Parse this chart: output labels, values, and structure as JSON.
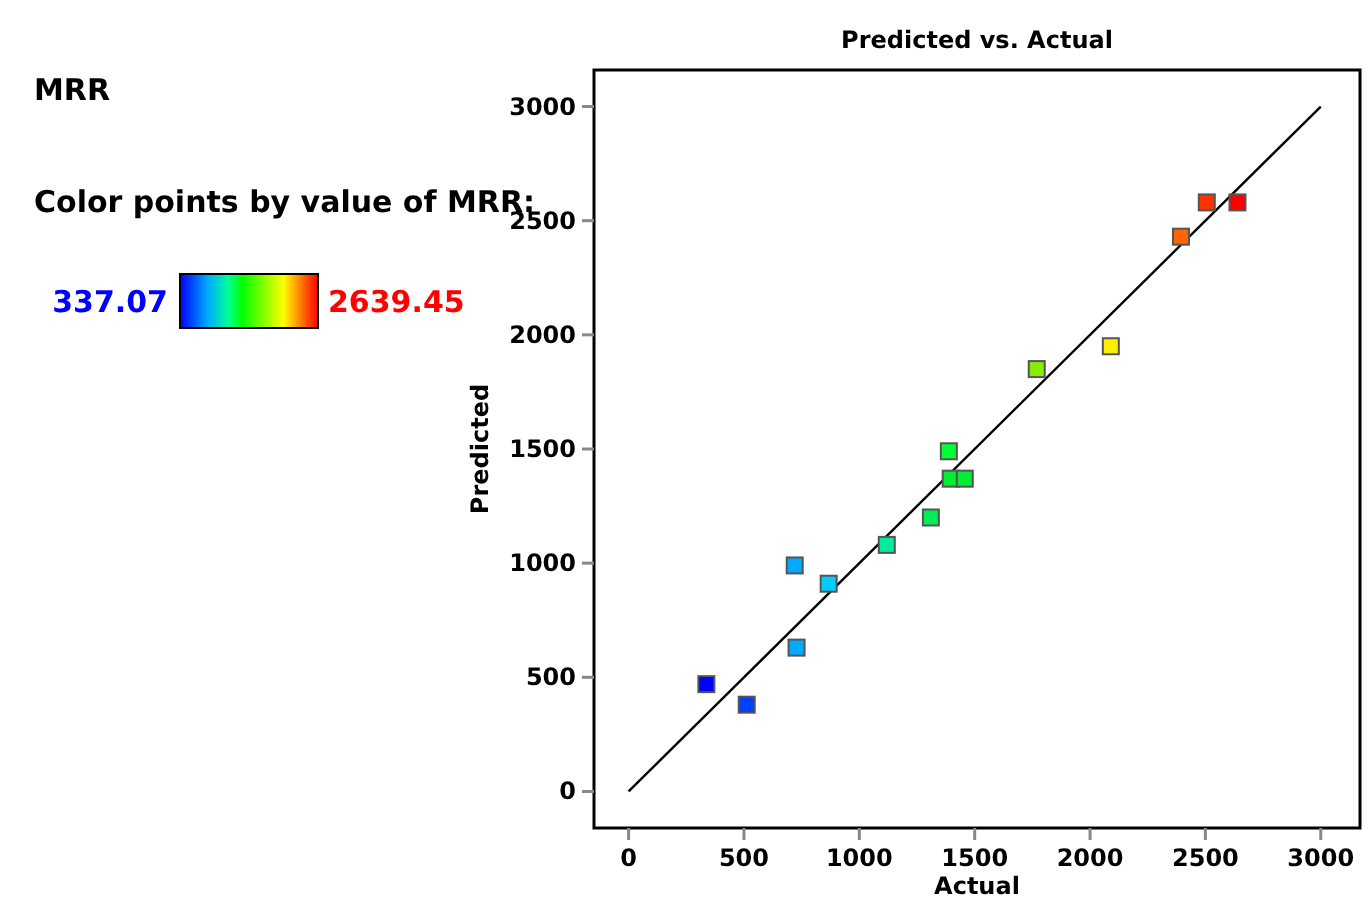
{
  "chart_data": {
    "type": "scatter",
    "title": "Predicted vs. Actual",
    "subtitle": "MRR",
    "xlabel": "Actual",
    "ylabel": "Predicted",
    "clabel": "Color points by value of MRR:",
    "annotations": [
      "337.07",
      "2639.45"
    ],
    "xlim": [
      -150,
      3170
    ],
    "ylim": [
      -160,
      3160
    ],
    "xticks": [
      0,
      500,
      1000,
      1500,
      2000,
      2500,
      3000
    ],
    "yticks": [
      0,
      500,
      1000,
      1500,
      2000,
      2500,
      3000
    ],
    "marker": "square",
    "series": [
      {
        "type": "scatter",
        "x": [
          337,
          512,
          720,
          728,
          867,
          1119,
          1310,
          1388,
          1396,
          1457,
          1769,
          2090,
          2394,
          2506,
          2639
        ],
        "values": [
          470,
          380,
          990,
          630,
          910,
          1080,
          1200,
          1490,
          1370,
          1370,
          1850,
          1950,
          2430,
          2580,
          2580
        ],
        "colors": [
          "#0000ff",
          "#0040ff",
          "#00aaff",
          "#00aaff",
          "#00ccff",
          "#00ee99",
          "#00ee55",
          "#00ff33",
          "#00ee33",
          "#00ee33",
          "#88ee00",
          "#ffee00",
          "#ff6600",
          "#ff3300",
          "#ff0000"
        ]
      },
      {
        "type": "line",
        "color": "#000000",
        "x": [
          0,
          3000
        ],
        "values": [
          0,
          3000
        ],
        "marker": "none",
        "line_style": "solid"
      }
    ]
  }
}
